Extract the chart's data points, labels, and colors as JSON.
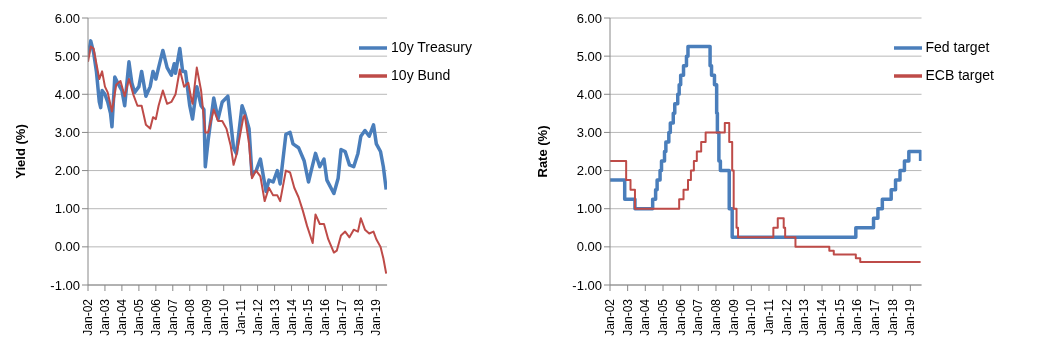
{
  "chart_data": [
    {
      "type": "line",
      "ylabel": "Yield (%)",
      "grid": "y",
      "legend": "top right",
      "xlim": [
        "2002-01",
        "2019-08-20"
      ],
      "ylim": [
        -1,
        6
      ],
      "yticks": [
        {
          "value": -1,
          "label": "-1.00"
        },
        {
          "value": 0,
          "label": "0.00"
        },
        {
          "value": 1,
          "label": "1.00"
        },
        {
          "value": 2,
          "label": "2.00"
        },
        {
          "value": 3,
          "label": "3.00"
        },
        {
          "value": 4,
          "label": "4.00"
        },
        {
          "value": 5,
          "label": "5.00"
        },
        {
          "value": 6,
          "label": "6.00"
        }
      ],
      "xticks": [
        {
          "value": "2002-01",
          "label": "Jan-02"
        },
        {
          "value": "2003-01",
          "label": "Jan-03"
        },
        {
          "value": "2004-01",
          "label": "Jan-04"
        },
        {
          "value": "2005-01",
          "label": "Jan-05"
        },
        {
          "value": "2006-01",
          "label": "Jan-06"
        },
        {
          "value": "2007-01",
          "label": "Jan-07"
        },
        {
          "value": "2008-01",
          "label": "Jan-08"
        },
        {
          "value": "2009-01",
          "label": "Jan-09"
        },
        {
          "value": "2010-01",
          "label": "Jan-10"
        },
        {
          "value": "2011-01",
          "label": "Jan-11"
        },
        {
          "value": "2012-01",
          "label": "Jan-12"
        },
        {
          "value": "2013-01",
          "label": "Jan-13"
        },
        {
          "value": "2014-01",
          "label": "Jan-14"
        },
        {
          "value": "2015-01",
          "label": "Jan-15"
        },
        {
          "value": "2016-01",
          "label": "Jan-16"
        },
        {
          "value": "2017-01",
          "label": "Jan-17"
        },
        {
          "value": "2018-01",
          "label": "Jan-18"
        },
        {
          "value": "2019-01",
          "label": "Jan-19"
        }
      ],
      "series": [
        {
          "name": "10y Treasury",
          "color": "#4a7ebb",
          "x": [
            "2002-01",
            "2002-03",
            "2002-05",
            "2002-07",
            "2002-09",
            "2002-10",
            "2002-11",
            "2003-01",
            "2003-03",
            "2003-05",
            "2003-06",
            "2003-08",
            "2003-10",
            "2004-01",
            "2004-03",
            "2004-06",
            "2004-08",
            "2004-10",
            "2005-01",
            "2005-03",
            "2005-06",
            "2005-09",
            "2005-11",
            "2006-01",
            "2006-03",
            "2006-06",
            "2006-09",
            "2006-12",
            "2007-02",
            "2007-03",
            "2007-06",
            "2007-08",
            "2007-10",
            "2007-12",
            "2008-01",
            "2008-03",
            "2008-06",
            "2008-09",
            "2008-11",
            "2008-12",
            "2009-02",
            "2009-06",
            "2009-09",
            "2009-12",
            "2010-04",
            "2010-08",
            "2010-10",
            "2011-02",
            "2011-04",
            "2011-07",
            "2011-09",
            "2011-12",
            "2012-03",
            "2012-07",
            "2012-09",
            "2012-12",
            "2013-03",
            "2013-05",
            "2013-09",
            "2013-12",
            "2014-02",
            "2014-06",
            "2014-10",
            "2015-01",
            "2015-03",
            "2015-06",
            "2015-09",
            "2015-12",
            "2016-02",
            "2016-07",
            "2016-10",
            "2016-12",
            "2017-03",
            "2017-06",
            "2017-09",
            "2017-12",
            "2018-02",
            "2018-05",
            "2018-08",
            "2018-11",
            "2019-01",
            "2019-04",
            "2019-06",
            "2019-08"
          ],
          "values": [
            5.0,
            5.4,
            5.1,
            4.6,
            3.8,
            3.65,
            4.1,
            4.0,
            3.8,
            3.5,
            3.15,
            4.45,
            4.3,
            4.1,
            3.7,
            4.85,
            4.3,
            4.05,
            4.2,
            4.6,
            3.95,
            4.2,
            4.6,
            4.4,
            4.7,
            5.15,
            4.7,
            4.5,
            4.8,
            4.55,
            5.2,
            4.6,
            4.6,
            4.0,
            3.7,
            3.35,
            4.2,
            3.7,
            3.6,
            2.1,
            2.8,
            3.9,
            3.35,
            3.8,
            3.95,
            2.6,
            2.45,
            3.7,
            3.5,
            3.1,
            1.9,
            2.0,
            2.3,
            1.45,
            1.75,
            1.7,
            2.0,
            1.65,
            2.95,
            3.0,
            2.7,
            2.6,
            2.25,
            1.7,
            2.0,
            2.45,
            2.1,
            2.3,
            1.75,
            1.4,
            1.8,
            2.55,
            2.5,
            2.15,
            2.1,
            2.45,
            2.9,
            3.05,
            2.9,
            3.2,
            2.7,
            2.5,
            2.1,
            1.5
          ]
        },
        {
          "name": "10y Bund",
          "color": "#be4b48",
          "x": [
            "2002-01",
            "2002-03",
            "2002-05",
            "2002-07",
            "2002-09",
            "2002-11",
            "2003-01",
            "2003-03",
            "2003-06",
            "2003-09",
            "2003-12",
            "2004-03",
            "2004-06",
            "2004-09",
            "2004-12",
            "2005-03",
            "2005-06",
            "2005-09",
            "2005-11",
            "2006-01",
            "2006-03",
            "2006-06",
            "2006-09",
            "2006-12",
            "2007-03",
            "2007-06",
            "2007-09",
            "2007-12",
            "2008-02",
            "2008-03",
            "2008-06",
            "2008-09",
            "2008-12",
            "2009-02",
            "2009-06",
            "2009-09",
            "2009-12",
            "2010-03",
            "2010-06",
            "2010-08",
            "2010-10",
            "2011-03",
            "2011-04",
            "2011-07",
            "2011-09",
            "2011-12",
            "2012-03",
            "2012-06",
            "2012-09",
            "2012-12",
            "2013-03",
            "2013-05",
            "2013-09",
            "2013-12",
            "2014-03",
            "2014-06",
            "2014-09",
            "2014-12",
            "2015-04",
            "2015-06",
            "2015-09",
            "2015-12",
            "2016-03",
            "2016-07",
            "2016-09",
            "2016-12",
            "2017-03",
            "2017-06",
            "2017-09",
            "2017-12",
            "2018-02",
            "2018-05",
            "2018-08",
            "2018-11",
            "2019-01",
            "2019-04",
            "2019-06",
            "2019-08"
          ],
          "values": [
            4.85,
            5.25,
            5.2,
            4.8,
            4.4,
            4.6,
            4.2,
            4.05,
            3.55,
            4.25,
            4.35,
            3.95,
            4.4,
            4.0,
            3.7,
            3.7,
            3.2,
            3.1,
            3.4,
            3.35,
            3.7,
            4.1,
            3.75,
            3.8,
            4.0,
            4.65,
            4.2,
            4.3,
            3.9,
            3.75,
            4.7,
            4.1,
            3.0,
            3.0,
            3.6,
            3.3,
            3.3,
            3.1,
            2.65,
            2.15,
            2.4,
            3.4,
            3.45,
            2.7,
            1.8,
            2.0,
            1.85,
            1.2,
            1.55,
            1.35,
            1.35,
            1.2,
            2.0,
            1.95,
            1.55,
            1.3,
            0.95,
            0.55,
            0.1,
            0.85,
            0.6,
            0.6,
            0.2,
            -0.15,
            -0.1,
            0.3,
            0.4,
            0.25,
            0.45,
            0.4,
            0.75,
            0.45,
            0.35,
            0.4,
            0.2,
            0.0,
            -0.3,
            -0.7
          ]
        }
      ]
    },
    {
      "type": "step",
      "ylabel": "Rate (%)",
      "grid": "y",
      "legend": "top right",
      "xlim": [
        "2002-01",
        "2019-08-20"
      ],
      "ylim": [
        -1,
        6
      ],
      "yticks": [
        {
          "value": -1,
          "label": "-1.00"
        },
        {
          "value": 0,
          "label": "0.00"
        },
        {
          "value": 1,
          "label": "1.00"
        },
        {
          "value": 2,
          "label": "2.00"
        },
        {
          "value": 3,
          "label": "3.00"
        },
        {
          "value": 4,
          "label": "4.00"
        },
        {
          "value": 5,
          "label": "5.00"
        },
        {
          "value": 6,
          "label": "6.00"
        }
      ],
      "xticks": [
        {
          "value": "2002-01",
          "label": "Jan-02"
        },
        {
          "value": "2003-01",
          "label": "Jan-03"
        },
        {
          "value": "2004-01",
          "label": "Jan-04"
        },
        {
          "value": "2005-01",
          "label": "Jan-05"
        },
        {
          "value": "2006-01",
          "label": "Jan-06"
        },
        {
          "value": "2007-01",
          "label": "Jan-07"
        },
        {
          "value": "2008-01",
          "label": "Jan-08"
        },
        {
          "value": "2009-01",
          "label": "Jan-09"
        },
        {
          "value": "2010-01",
          "label": "Jan-10"
        },
        {
          "value": "2011-01",
          "label": "Jan-11"
        },
        {
          "value": "2012-01",
          "label": "Jan-12"
        },
        {
          "value": "2013-01",
          "label": "Jan-13"
        },
        {
          "value": "2014-01",
          "label": "Jan-14"
        },
        {
          "value": "2015-01",
          "label": "Jan-15"
        },
        {
          "value": "2016-01",
          "label": "Jan-16"
        },
        {
          "value": "2017-01",
          "label": "Jan-17"
        },
        {
          "value": "2018-01",
          "label": "Jan-18"
        },
        {
          "value": "2019-01",
          "label": "Jan-19"
        }
      ],
      "series": [
        {
          "name": "Fed target",
          "color": "#4a7ebb",
          "x": [
            "2002-01",
            "2002-11",
            "2003-06",
            "2004-06",
            "2004-08",
            "2004-09",
            "2004-11",
            "2004-12",
            "2005-02",
            "2005-03",
            "2005-05",
            "2005-06",
            "2005-08",
            "2005-09",
            "2005-11",
            "2005-12",
            "2006-01",
            "2006-03",
            "2006-05",
            "2006-06",
            "2007-09",
            "2007-10",
            "2007-12",
            "2008-01-15",
            "2008-01-30",
            "2008-03",
            "2008-04",
            "2008-10",
            "2008-12",
            "2015-12",
            "2016-12",
            "2017-03",
            "2017-06",
            "2017-12",
            "2018-03",
            "2018-06",
            "2018-09",
            "2018-12",
            "2019-08"
          ],
          "values": [
            1.75,
            1.25,
            1.0,
            1.25,
            1.5,
            1.75,
            2.0,
            2.25,
            2.5,
            2.75,
            3.0,
            3.25,
            3.5,
            3.75,
            4.0,
            4.25,
            4.5,
            4.75,
            5.0,
            5.25,
            4.75,
            4.5,
            4.25,
            3.5,
            3.0,
            2.25,
            2.0,
            1.0,
            0.25,
            0.5,
            0.75,
            1.0,
            1.25,
            1.5,
            1.75,
            2.0,
            2.25,
            2.5,
            2.25
          ]
        },
        {
          "name": "ECB target",
          "color": "#be4b48",
          "x": [
            "2002-01",
            "2002-12",
            "2003-03",
            "2003-06",
            "2005-12",
            "2006-03",
            "2006-06",
            "2006-08",
            "2006-10",
            "2006-12",
            "2007-03",
            "2007-06",
            "2008-07",
            "2008-10",
            "2008-12",
            "2009-01",
            "2009-03",
            "2009-04",
            "2011-04",
            "2011-07",
            "2011-11",
            "2011-12",
            "2012-07",
            "2014-06",
            "2014-09",
            "2015-12",
            "2016-03",
            "2019-08"
          ],
          "values": [
            2.25,
            1.75,
            1.5,
            1.0,
            1.25,
            1.5,
            1.75,
            2.0,
            2.25,
            2.5,
            2.75,
            3.0,
            3.25,
            2.75,
            2.0,
            1.0,
            0.5,
            0.25,
            0.5,
            0.75,
            0.5,
            0.25,
            0.0,
            -0.1,
            -0.2,
            -0.3,
            -0.4,
            -0.4
          ]
        }
      ]
    }
  ]
}
